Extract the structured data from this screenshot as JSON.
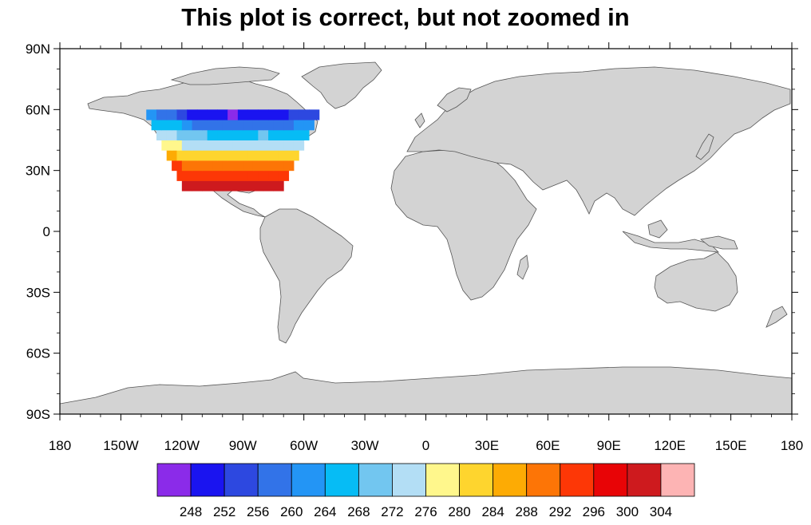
{
  "title": "This plot is correct, but not zoomed in",
  "map": {
    "projection": "cylindrical-equidistant",
    "lon_range": [
      -180,
      180
    ],
    "lat_range": [
      -90,
      90
    ],
    "land_color": "#d3d3d3",
    "ocean_color": "#ffffff",
    "field_region": {
      "lon": [
        -140,
        -55
      ],
      "lat": [
        20,
        60
      ]
    },
    "field_description_levels": "contoured temperature field over North America"
  },
  "axes": {
    "lat_ticks": [
      {
        "value": 90,
        "label": "90N"
      },
      {
        "value": 60,
        "label": "60N"
      },
      {
        "value": 30,
        "label": "30N"
      },
      {
        "value": 0,
        "label": "0"
      },
      {
        "value": -30,
        "label": "30S"
      },
      {
        "value": -60,
        "label": "60S"
      },
      {
        "value": -90,
        "label": "90S"
      }
    ],
    "lon_ticks": [
      {
        "value": -180,
        "label": "180"
      },
      {
        "value": -150,
        "label": "150W"
      },
      {
        "value": -120,
        "label": "120W"
      },
      {
        "value": -90,
        "label": "90W"
      },
      {
        "value": -60,
        "label": "60W"
      },
      {
        "value": -30,
        "label": "30W"
      },
      {
        "value": 0,
        "label": "0"
      },
      {
        "value": 30,
        "label": "30E"
      },
      {
        "value": 60,
        "label": "60E"
      },
      {
        "value": 90,
        "label": "90E"
      },
      {
        "value": 120,
        "label": "120E"
      },
      {
        "value": 150,
        "label": "150E"
      },
      {
        "value": 180,
        "label": "180"
      }
    ]
  },
  "colorbar": {
    "colors": [
      "#8b2be9",
      "#1a14f0",
      "#2d48e0",
      "#3273e8",
      "#2395f5",
      "#06bcf5",
      "#72c6f0",
      "#b3def5",
      "#fff78c",
      "#fed52e",
      "#fdab04",
      "#fd7506",
      "#fd3706",
      "#e80406",
      "#ce1a1e",
      "#fdb4b4"
    ],
    "labels": [
      "248",
      "252",
      "256",
      "260",
      "264",
      "268",
      "272",
      "276",
      "280",
      "284",
      "288",
      "292",
      "296",
      "300",
      "304"
    ]
  }
}
